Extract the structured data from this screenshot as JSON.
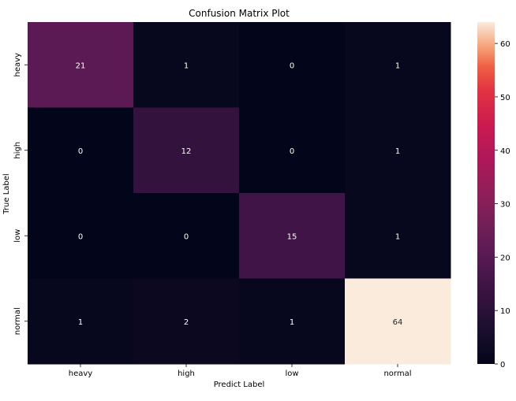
{
  "chart_data": {
    "type": "heatmap",
    "title": "Confusion Matrix Plot",
    "xlabel": "Predict Label",
    "ylabel": "True Label",
    "x_categories": [
      "heavy",
      "high",
      "low",
      "normal"
    ],
    "y_categories": [
      "heavy",
      "high",
      "low",
      "normal"
    ],
    "values": [
      [
        21,
        1,
        0,
        1
      ],
      [
        0,
        12,
        0,
        1
      ],
      [
        0,
        0,
        15,
        1
      ],
      [
        1,
        2,
        1,
        64
      ]
    ],
    "colorbar": {
      "range": [
        0,
        64
      ],
      "ticks": [
        0,
        10,
        20,
        30,
        40,
        50,
        60
      ],
      "colormap": "rocket"
    },
    "annotations_on": true,
    "grid": false
  }
}
